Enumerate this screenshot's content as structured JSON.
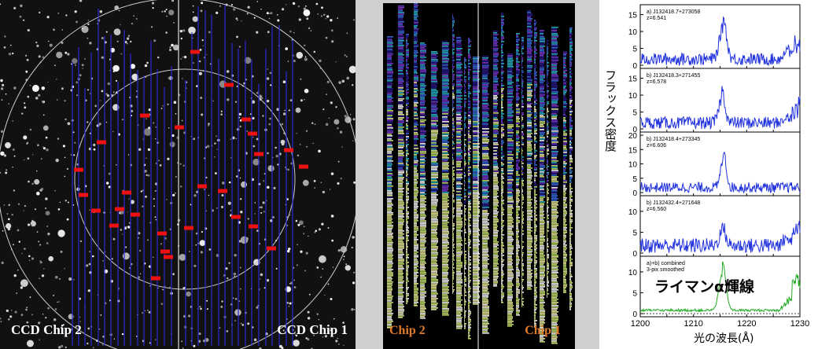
{
  "left_image": {
    "chip_left": "CCD Chip 2",
    "chip_right": "CCD Chip 1"
  },
  "middle_image": {
    "chip_left": "Chip 2",
    "chip_right": "Chip 1"
  },
  "spectra": {
    "ylabel": "フラックス密度",
    "xlabel": "光の波長(Å)",
    "annotation": "ライマンα輝線",
    "xticks": [
      "1200",
      "1210",
      "1220",
      "1230"
    ],
    "panels": [
      {
        "name": "a) J132418.7+273058",
        "z": "z=6.541",
        "yticks": [
          "0",
          "5",
          "10",
          "15"
        ]
      },
      {
        "name": "b) J132418.3+271455",
        "z": "z=6.578",
        "yticks": [
          "0",
          "5",
          "10",
          "15"
        ]
      },
      {
        "name": "b) J132418.4+273345",
        "z": "z=6.606",
        "yticks": [
          "0",
          "5",
          "10",
          "15",
          "20"
        ]
      },
      {
        "name": "b) J132432.4+271648",
        "z": "z=6.560",
        "yticks": [
          "0",
          "5",
          "10"
        ]
      },
      {
        "name": "a)+b) combined",
        "z": "3-pix smoothed",
        "yticks": [
          "0",
          "5",
          "10"
        ]
      }
    ],
    "line_color": "#2233dd",
    "combined_color": "#22aa22"
  }
}
